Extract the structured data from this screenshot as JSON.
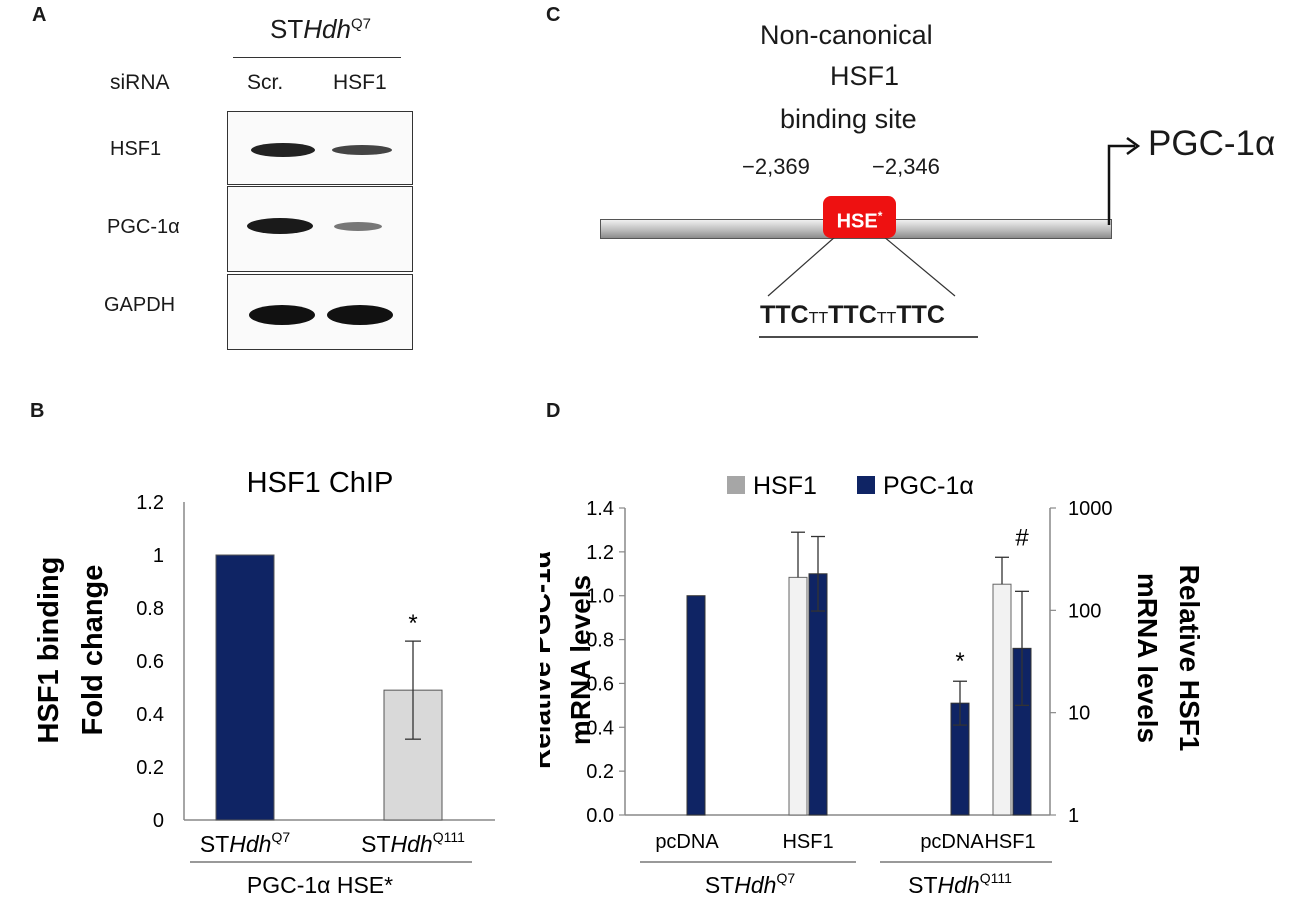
{
  "panels": {
    "a": "A",
    "b": "B",
    "c": "C",
    "d": "D"
  },
  "panel_a": {
    "cell_line": {
      "prefix": "ST",
      "italic": "Hdh",
      "sup": "Q7"
    },
    "row_label": "siRNA",
    "columns": [
      "Scr.",
      "HSF1"
    ],
    "blots": [
      {
        "label": "HSF1",
        "intensity": [
          1.0,
          0.65
        ]
      },
      {
        "label": "PGC-1α",
        "intensity": [
          1.0,
          0.35
        ]
      },
      {
        "label": "GAPDH",
        "intensity": [
          1.0,
          1.0
        ]
      }
    ],
    "band_color": "#111111"
  },
  "panel_c": {
    "title_lines": [
      "Non-canonical",
      "HSF1",
      "binding site"
    ],
    "pos_start": "−2,369",
    "pos_end": "−2,346",
    "element_label": "HSE",
    "element_sup": "*",
    "gene": "PGC-1α",
    "sequence": [
      {
        "text": "TTC",
        "bold": true
      },
      {
        "text": "TT",
        "bold": false
      },
      {
        "text": "TTC",
        "bold": true
      },
      {
        "text": "TT",
        "bold": false
      },
      {
        "text": "TTC",
        "bold": true
      }
    ],
    "element_color": "#ee1111"
  },
  "chart_data": [
    {
      "type": "bar",
      "title": "HSF1 ChIP",
      "ylabel_lines": [
        "HSF1 binding",
        "Fold change"
      ],
      "ylim": [
        0,
        1.2
      ],
      "yticks": [
        "0",
        "0.2",
        "0.4",
        "0.6",
        "0.8",
        "1",
        "1.2"
      ],
      "categories": [
        {
          "prefix": "ST",
          "italic": "Hdh",
          "sup": "Q7"
        },
        {
          "prefix": "ST",
          "italic": "Hdh",
          "sup": "Q111"
        }
      ],
      "values": [
        1.0,
        0.49
      ],
      "errors": [
        0.0,
        0.185
      ],
      "bar_colors": [
        "#0f2464",
        "#d9d9d9"
      ],
      "annotations": [
        "",
        "*"
      ],
      "group_label": "PGC-1α HSE*",
      "grid": false
    },
    {
      "type": "bar",
      "ylabel_left_lines": [
        "Relative PGC-1α",
        "mRNA levels"
      ],
      "ylabel_right_lines": [
        "Relative HSF1",
        "mRNA levels"
      ],
      "ylim_left": [
        0,
        1.4
      ],
      "yticks_left": [
        "0.0",
        "0.2",
        "0.4",
        "0.6",
        "0.8",
        "1.0",
        "1.2",
        "1.4"
      ],
      "ylim_right_log": [
        1,
        1000
      ],
      "yticks_right": [
        "1",
        "10",
        "100",
        "1000"
      ],
      "categories": [
        "pcDNA",
        "HSF1",
        "pcDNA",
        "HSF1"
      ],
      "groups": [
        {
          "prefix": "ST",
          "italic": "Hdh",
          "sup": "Q7"
        },
        {
          "prefix": "ST",
          "italic": "Hdh",
          "sup": "Q111"
        }
      ],
      "series": [
        {
          "name": "HSF1",
          "axis": "right",
          "color": "#f2f2f2",
          "legend_color": "#a6a6a6",
          "values": [
            1.0,
            210,
            1.0,
            180
          ],
          "err_high": [
            0,
            580,
            0,
            330
          ]
        },
        {
          "name": "PGC-1α",
          "axis": "left",
          "color": "#0f2464",
          "legend_color": "#0f2464",
          "values": [
            1.0,
            1.1,
            0.51,
            0.76
          ],
          "errors": [
            0,
            0.17,
            0.1,
            0.26
          ]
        }
      ],
      "annotations": [
        "",
        "",
        "*",
        "#"
      ],
      "grid": false,
      "legend_position": "top"
    }
  ]
}
